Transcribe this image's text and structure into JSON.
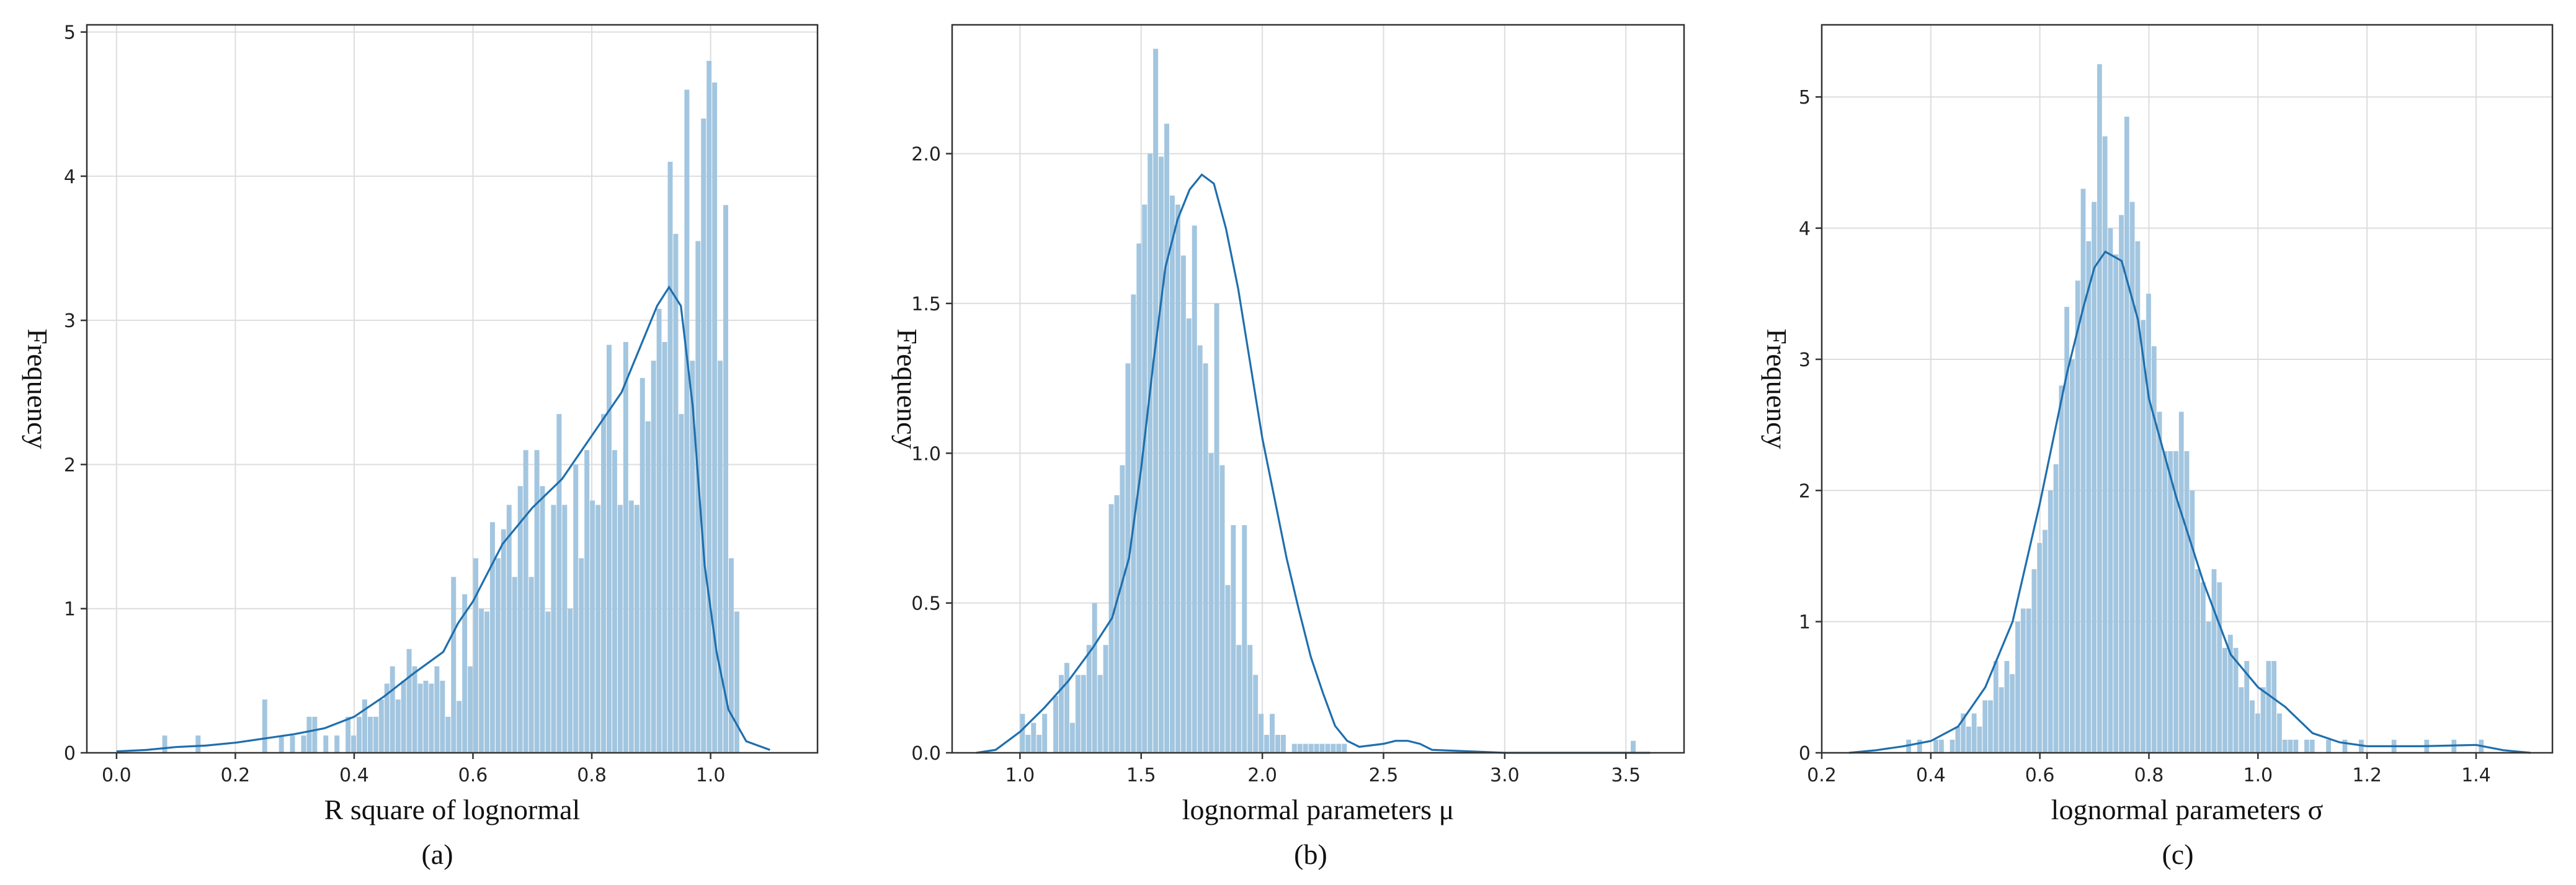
{
  "colors": {
    "bar": "#a3c6e0",
    "kde": "#1f6fad",
    "grid": "#dddddd"
  },
  "chart_data": [
    {
      "type": "histogram",
      "caption": "(a)",
      "xlabel": "R square of lognormal",
      "ylabel": "Frequency",
      "xlim": [
        -0.05,
        1.18
      ],
      "ylim": [
        0,
        5.05
      ],
      "xticks": [
        0.0,
        0.2,
        0.4,
        0.6,
        0.8,
        1.0
      ],
      "xtick_labels": [
        "0.0",
        "0.2",
        "0.4",
        "0.6",
        "0.8",
        "1.0"
      ],
      "yticks": [
        0,
        1,
        2,
        3,
        4,
        5
      ],
      "ytick_labels": [
        "0",
        "1",
        "2",
        "3",
        "4",
        "5"
      ],
      "grid": true,
      "bin_start": 0.077,
      "bin_width": 0.00935,
      "values": [
        0.12,
        0,
        0,
        0,
        0,
        0,
        0.12,
        0,
        0,
        0,
        0,
        0,
        0,
        0,
        0,
        0,
        0,
        0,
        0.37,
        0,
        0,
        0.12,
        0,
        0.12,
        0,
        0.12,
        0.25,
        0.25,
        0,
        0.12,
        0,
        0.12,
        0,
        0.25,
        0.12,
        0.25,
        0.37,
        0.25,
        0.25,
        0.37,
        0.48,
        0.6,
        0.37,
        0.5,
        0.72,
        0.6,
        0.48,
        0.5,
        0.48,
        0.6,
        0.5,
        0.25,
        1.22,
        0.36,
        1.1,
        0.6,
        1.35,
        1.0,
        0.98,
        1.6,
        1.35,
        1.55,
        1.72,
        1.22,
        1.85,
        2.1,
        1.22,
        2.1,
        1.85,
        0.98,
        1.72,
        2.35,
        1.72,
        1.0,
        2.0,
        1.35,
        2.1,
        1.75,
        1.72,
        2.35,
        2.83,
        2.1,
        1.72,
        2.85,
        1.75,
        1.72,
        2.6,
        2.3,
        2.72,
        3.08,
        2.85,
        4.1,
        3.6,
        2.35,
        4.6,
        2.72,
        3.55,
        4.4,
        4.8,
        4.65,
        2.72,
        3.8,
        1.35,
        0.98
      ],
      "kde": [
        [
          0.0,
          0.01
        ],
        [
          0.05,
          0.02
        ],
        [
          0.1,
          0.04
        ],
        [
          0.15,
          0.05
        ],
        [
          0.2,
          0.07
        ],
        [
          0.25,
          0.1
        ],
        [
          0.3,
          0.13
        ],
        [
          0.35,
          0.17
        ],
        [
          0.4,
          0.25
        ],
        [
          0.45,
          0.39
        ],
        [
          0.5,
          0.55
        ],
        [
          0.55,
          0.7
        ],
        [
          0.575,
          0.9
        ],
        [
          0.6,
          1.05
        ],
        [
          0.65,
          1.45
        ],
        [
          0.7,
          1.7
        ],
        [
          0.75,
          1.9
        ],
        [
          0.8,
          2.2
        ],
        [
          0.85,
          2.5
        ],
        [
          0.88,
          2.8
        ],
        [
          0.91,
          3.1
        ],
        [
          0.93,
          3.23
        ],
        [
          0.95,
          3.1
        ],
        [
          0.97,
          2.4
        ],
        [
          0.99,
          1.3
        ],
        [
          1.01,
          0.7
        ],
        [
          1.03,
          0.3
        ],
        [
          1.06,
          0.08
        ],
        [
          1.1,
          0.02
        ]
      ]
    },
    {
      "type": "histogram",
      "caption": "(b)",
      "xlabel": "lognormal parameters μ",
      "ylabel": "Frequency",
      "xlim": [
        0.72,
        3.74
      ],
      "ylim": [
        0,
        2.43
      ],
      "xticks": [
        1.0,
        1.5,
        2.0,
        2.5,
        3.0,
        3.5
      ],
      "xtick_labels": [
        "1.0",
        "1.5",
        "2.0",
        "2.5",
        "3.0",
        "3.5"
      ],
      "yticks": [
        0,
        0.5,
        1.0,
        1.5,
        2.0
      ],
      "ytick_labels": [
        "0.0",
        "0.5",
        "1.0",
        "1.5",
        "2.0"
      ],
      "grid": true,
      "bin_start": 1.0,
      "bin_width": 0.0229,
      "values": [
        0.13,
        0.06,
        0.1,
        0.06,
        0.13,
        0,
        0.19,
        0.26,
        0.3,
        0.1,
        0.26,
        0.26,
        0.36,
        0.5,
        0.26,
        0.36,
        0.83,
        0.86,
        0.96,
        1.3,
        1.53,
        1.7,
        1.83,
        2.0,
        2.35,
        1.99,
        2.1,
        1.86,
        1.83,
        1.66,
        1.45,
        1.76,
        1.36,
        1.3,
        1.0,
        1.5,
        0.96,
        0.56,
        0.76,
        0.36,
        0.76,
        0.36,
        0.26,
        0.13,
        0.06,
        0.13,
        0.06,
        0.06,
        0,
        0.03,
        0.03,
        0.03,
        0.03,
        0.03,
        0.03,
        0.03,
        0.03,
        0.03,
        0.03
      ],
      "extra_bars": [
        [
          3.52,
          0.04
        ]
      ],
      "kde": [
        [
          0.82,
          0.0
        ],
        [
          0.9,
          0.01
        ],
        [
          0.95,
          0.04
        ],
        [
          1.0,
          0.07
        ],
        [
          1.05,
          0.11
        ],
        [
          1.1,
          0.15
        ],
        [
          1.2,
          0.24
        ],
        [
          1.3,
          0.35
        ],
        [
          1.38,
          0.45
        ],
        [
          1.45,
          0.65
        ],
        [
          1.5,
          0.95
        ],
        [
          1.55,
          1.3
        ],
        [
          1.6,
          1.62
        ],
        [
          1.65,
          1.78
        ],
        [
          1.7,
          1.88
        ],
        [
          1.75,
          1.93
        ],
        [
          1.8,
          1.9
        ],
        [
          1.85,
          1.75
        ],
        [
          1.9,
          1.55
        ],
        [
          1.95,
          1.3
        ],
        [
          2.0,
          1.05
        ],
        [
          2.05,
          0.85
        ],
        [
          2.1,
          0.65
        ],
        [
          2.15,
          0.48
        ],
        [
          2.2,
          0.32
        ],
        [
          2.25,
          0.2
        ],
        [
          2.3,
          0.09
        ],
        [
          2.35,
          0.04
        ],
        [
          2.4,
          0.02
        ],
        [
          2.5,
          0.03
        ],
        [
          2.55,
          0.04
        ],
        [
          2.6,
          0.04
        ],
        [
          2.65,
          0.03
        ],
        [
          2.7,
          0.01
        ],
        [
          3.0,
          0.0
        ],
        [
          3.5,
          0.0
        ],
        [
          3.6,
          0.0
        ]
      ]
    },
    {
      "type": "histogram",
      "caption": "(c)",
      "xlabel": "lognormal parameters σ",
      "ylabel": "Frequency",
      "xlim": [
        0.2,
        1.54
      ],
      "ylim": [
        0,
        5.55
      ],
      "xticks": [
        0.2,
        0.4,
        0.6,
        0.8,
        1.0,
        1.2,
        1.4
      ],
      "xtick_labels": [
        "0.2",
        "0.4",
        "0.6",
        "0.8",
        "1.0",
        "1.2",
        "1.4"
      ],
      "yticks": [
        0,
        1,
        2,
        3,
        4,
        5
      ],
      "ytick_labels": [
        "0",
        "1",
        "2",
        "3",
        "4",
        "5"
      ],
      "grid": true,
      "bin_start": 0.355,
      "bin_width": 0.01,
      "values": [
        0.1,
        0,
        0.1,
        0,
        0,
        0.1,
        0.1,
        0,
        0.1,
        0.2,
        0.3,
        0.2,
        0.3,
        0.2,
        0.4,
        0.4,
        0.7,
        0.5,
        0.7,
        0.6,
        1.0,
        1.1,
        1.1,
        1.4,
        1.6,
        1.7,
        2.0,
        2.2,
        2.8,
        3.4,
        3.0,
        3.6,
        4.3,
        3.9,
        4.2,
        5.25,
        4.7,
        4.0,
        3.8,
        4.1,
        4.85,
        4.2,
        3.9,
        3.3,
        3.5,
        3.1,
        2.6,
        2.3,
        2.3,
        2.3,
        2.6,
        2.3,
        2.0,
        1.4,
        1.3,
        1.0,
        1.4,
        1.3,
        0.8,
        0.9,
        0.8,
        0.5,
        0.7,
        0.4,
        0.3,
        0.5,
        0.7,
        0.7,
        0.3,
        0.1,
        0.1,
        0.1,
        0,
        0.1,
        0.1
      ],
      "extra_bars": [
        [
          1.125,
          0.1
        ],
        [
          1.155,
          0.1
        ],
        [
          1.185,
          0.1
        ],
        [
          1.245,
          0.1
        ],
        [
          1.305,
          0.1
        ],
        [
          1.355,
          0.1
        ],
        [
          1.405,
          0.1
        ]
      ],
      "kde": [
        [
          0.25,
          0.0
        ],
        [
          0.3,
          0.02
        ],
        [
          0.35,
          0.05
        ],
        [
          0.4,
          0.09
        ],
        [
          0.45,
          0.2
        ],
        [
          0.5,
          0.5
        ],
        [
          0.55,
          1.0
        ],
        [
          0.6,
          1.9
        ],
        [
          0.65,
          2.9
        ],
        [
          0.68,
          3.4
        ],
        [
          0.7,
          3.7
        ],
        [
          0.72,
          3.82
        ],
        [
          0.75,
          3.75
        ],
        [
          0.78,
          3.3
        ],
        [
          0.8,
          2.7
        ],
        [
          0.85,
          1.95
        ],
        [
          0.9,
          1.3
        ],
        [
          0.95,
          0.75
        ],
        [
          1.0,
          0.5
        ],
        [
          1.05,
          0.35
        ],
        [
          1.1,
          0.15
        ],
        [
          1.15,
          0.08
        ],
        [
          1.2,
          0.05
        ],
        [
          1.3,
          0.05
        ],
        [
          1.4,
          0.06
        ],
        [
          1.45,
          0.02
        ],
        [
          1.5,
          0.0
        ]
      ]
    }
  ]
}
